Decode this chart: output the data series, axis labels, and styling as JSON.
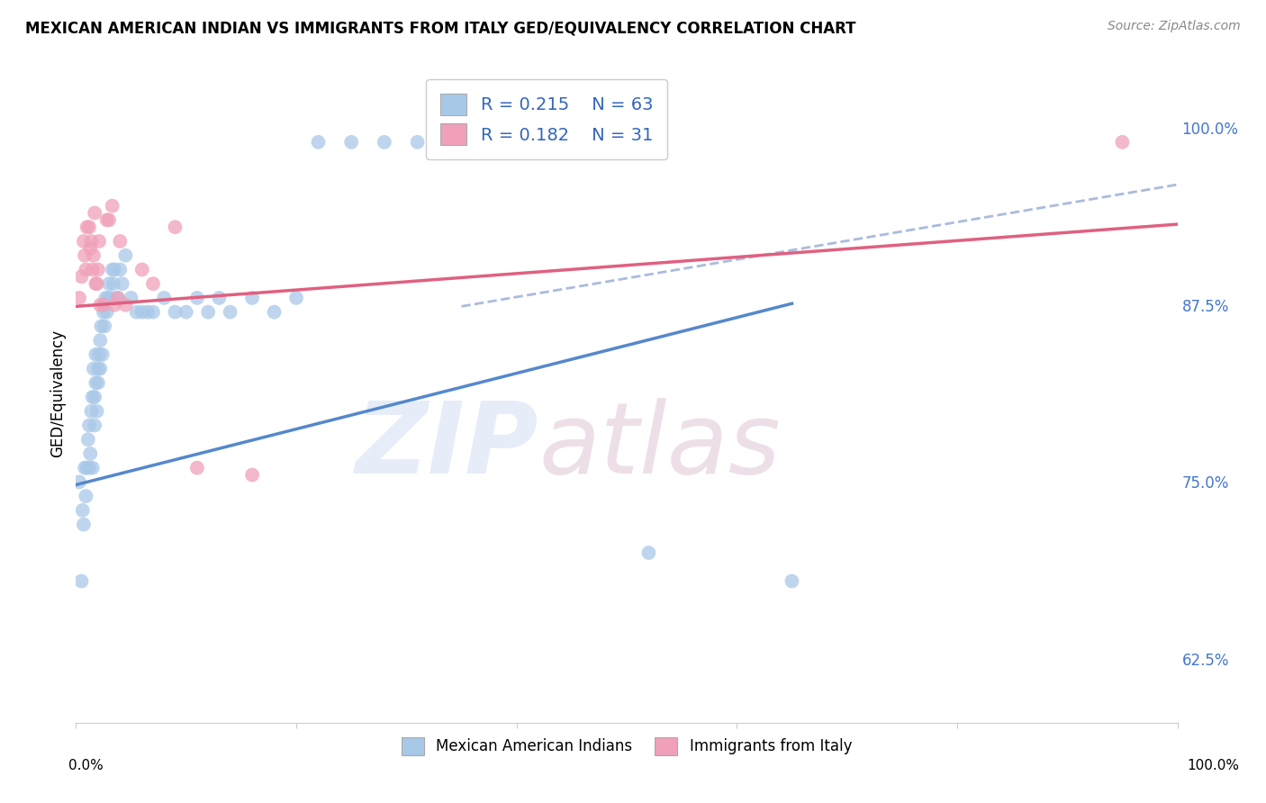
{
  "title": "MEXICAN AMERICAN INDIAN VS IMMIGRANTS FROM ITALY GED/EQUIVALENCY CORRELATION CHART",
  "source": "Source: ZipAtlas.com",
  "ylabel": "GED/Equivalency",
  "ytick_labels": [
    "100.0%",
    "87.5%",
    "75.0%",
    "62.5%"
  ],
  "ytick_values": [
    1.0,
    0.875,
    0.75,
    0.625
  ],
  "xlim": [
    0.0,
    1.0
  ],
  "ylim": [
    0.58,
    1.045
  ],
  "legend_r1": "R = 0.215",
  "legend_n1": "N = 63",
  "legend_r2": "R = 0.182",
  "legend_n2": "N = 31",
  "color_blue": "#a8c8e8",
  "color_pink": "#f0a0b8",
  "color_blue_line": "#5588cc",
  "color_pink_line": "#e06080",
  "color_dashed": "#aabbdd",
  "blue_scatter_x": [
    0.003,
    0.005,
    0.006,
    0.007,
    0.008,
    0.009,
    0.01,
    0.011,
    0.012,
    0.012,
    0.013,
    0.014,
    0.015,
    0.015,
    0.016,
    0.017,
    0.017,
    0.018,
    0.018,
    0.019,
    0.02,
    0.02,
    0.021,
    0.022,
    0.022,
    0.023,
    0.024,
    0.025,
    0.026,
    0.027,
    0.028,
    0.029,
    0.03,
    0.032,
    0.033,
    0.034,
    0.035,
    0.038,
    0.04,
    0.042,
    0.045,
    0.05,
    0.055,
    0.06,
    0.065,
    0.07,
    0.08,
    0.09,
    0.1,
    0.11,
    0.12,
    0.13,
    0.14,
    0.16,
    0.18,
    0.2,
    0.22,
    0.25,
    0.28,
    0.31,
    0.35,
    0.52,
    0.65
  ],
  "blue_scatter_y": [
    0.75,
    0.68,
    0.73,
    0.72,
    0.76,
    0.74,
    0.76,
    0.78,
    0.76,
    0.79,
    0.77,
    0.8,
    0.76,
    0.81,
    0.83,
    0.79,
    0.81,
    0.82,
    0.84,
    0.8,
    0.83,
    0.82,
    0.84,
    0.83,
    0.85,
    0.86,
    0.84,
    0.87,
    0.86,
    0.88,
    0.87,
    0.88,
    0.89,
    0.88,
    0.9,
    0.89,
    0.9,
    0.88,
    0.9,
    0.89,
    0.91,
    0.88,
    0.87,
    0.87,
    0.87,
    0.87,
    0.88,
    0.87,
    0.87,
    0.88,
    0.87,
    0.88,
    0.87,
    0.88,
    0.87,
    0.88,
    0.99,
    0.99,
    0.99,
    0.99,
    0.99,
    0.7,
    0.68
  ],
  "pink_scatter_x": [
    0.003,
    0.005,
    0.007,
    0.008,
    0.009,
    0.01,
    0.012,
    0.013,
    0.014,
    0.015,
    0.016,
    0.017,
    0.018,
    0.019,
    0.02,
    0.021,
    0.022,
    0.025,
    0.028,
    0.03,
    0.033,
    0.035,
    0.038,
    0.04,
    0.045,
    0.06,
    0.07,
    0.09,
    0.11,
    0.16,
    0.95
  ],
  "pink_scatter_y": [
    0.88,
    0.895,
    0.92,
    0.91,
    0.9,
    0.93,
    0.93,
    0.915,
    0.92,
    0.9,
    0.91,
    0.94,
    0.89,
    0.89,
    0.9,
    0.92,
    0.875,
    0.875,
    0.935,
    0.935,
    0.945,
    0.875,
    0.88,
    0.92,
    0.875,
    0.9,
    0.89,
    0.93,
    0.76,
    0.755,
    0.99
  ],
  "blue_line_x": [
    0.0,
    0.65
  ],
  "blue_line_y": [
    0.748,
    0.876
  ],
  "pink_line_x": [
    0.0,
    1.0
  ],
  "pink_line_y": [
    0.874,
    0.932
  ],
  "dashed_line_x": [
    0.35,
    1.0
  ],
  "dashed_line_y": [
    0.874,
    0.96
  ]
}
